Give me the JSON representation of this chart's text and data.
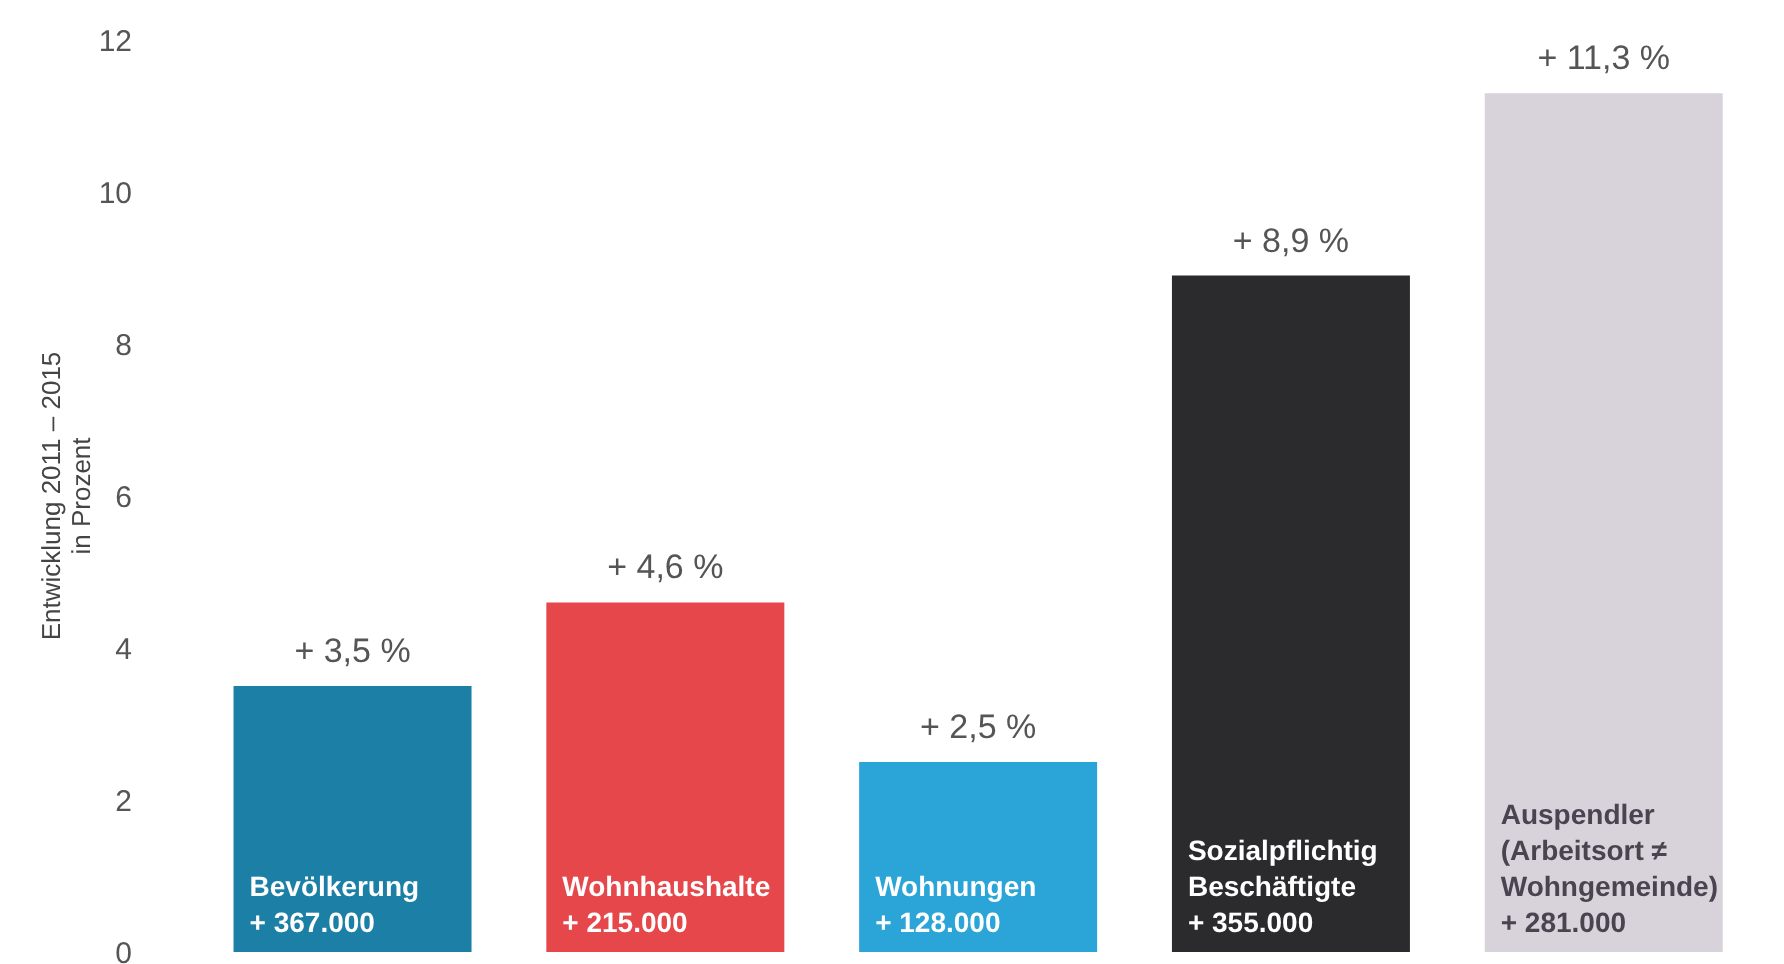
{
  "chart_data": {
    "type": "bar",
    "ylabel": "Entwicklung 2011 – 2015\nin Prozent",
    "categories": [
      "Bevölkerung\n+ 367.000",
      "Wohnhaushalte\n+ 215.000",
      "Wohnungen\n+ 128.000",
      "Sozialpflichtig\nBeschäftigte\n+ 355.000",
      "Auspendler\n(Arbeitsort ≠\nWohngemeinde)\n+ 281.000"
    ],
    "values": [
      3.5,
      4.6,
      2.5,
      8.9,
      11.3
    ],
    "colors": [
      "#1b7fa6",
      "#e5474b",
      "#2ba4d8",
      "#2b2a2c",
      "#d8d2db"
    ],
    "value_labels": [
      "+ 3,5 %",
      "+ 4,6 %",
      "+ 2,5 %",
      "+ 8,9 %",
      "+ 11,3 %"
    ],
    "ylim": [
      0,
      12
    ],
    "yticks": [
      0,
      2,
      4,
      6,
      8,
      10,
      12
    ]
  }
}
